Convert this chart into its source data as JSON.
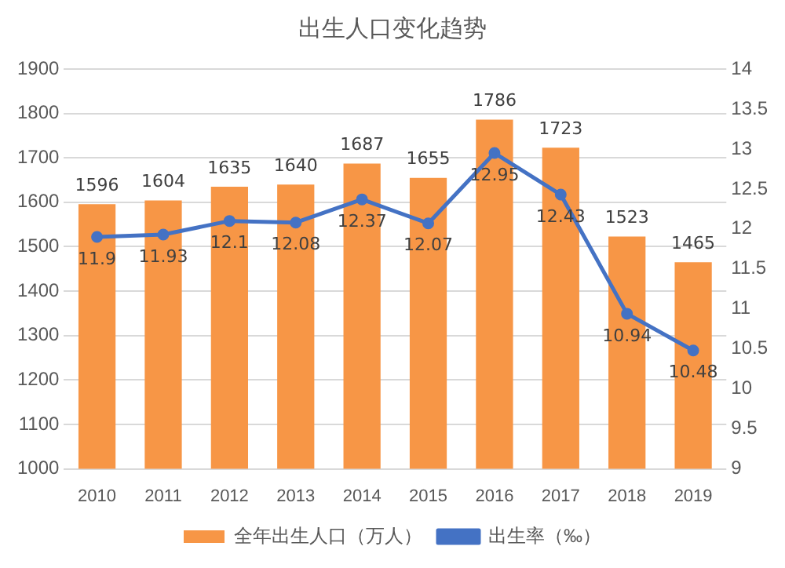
{
  "chart_data": {
    "type": "bar",
    "title": "出生人口变化趋势",
    "categories": [
      "2010",
      "2011",
      "2012",
      "2013",
      "2014",
      "2015",
      "2016",
      "2017",
      "2018",
      "2019"
    ],
    "series": [
      {
        "name": "全年出生人口（万人）",
        "color": "#f79646",
        "values": [
          1596,
          1604,
          1635,
          1640,
          1687,
          1655,
          1786,
          1723,
          1523,
          1465
        ]
      },
      {
        "name": "出生率（‰）",
        "type": "line",
        "axis": "y2",
        "color": "#4472c4",
        "values": [
          11.9,
          11.93,
          12.1,
          12.08,
          12.37,
          12.07,
          12.95,
          12.43,
          10.94,
          10.48
        ]
      }
    ],
    "ylim": [
      1000,
      1900
    ],
    "yticks": [
      1000,
      1100,
      1200,
      1300,
      1400,
      1500,
      1600,
      1700,
      1800,
      1900
    ],
    "y2lim": [
      9,
      14
    ],
    "y2ticks": [
      9,
      9.5,
      10,
      10.5,
      11,
      11.5,
      12,
      12.5,
      13,
      13.5,
      14
    ],
    "grid": "y",
    "legend": "bottom",
    "marker": "circle",
    "data_labels": true
  }
}
